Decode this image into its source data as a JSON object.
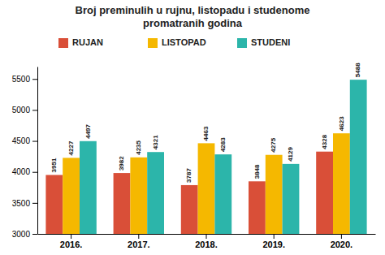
{
  "chart_data": {
    "type": "bar",
    "title": "Broj preminulih u rujnu, listopadu i studenome",
    "subtitle": "promatranih godina",
    "categories": [
      "2016.",
      "2017.",
      "2018.",
      "2019.",
      "2020."
    ],
    "series": [
      {
        "name": "RUJAN",
        "color": "#d94f38",
        "values": [
          3951,
          3982,
          3787,
          3848,
          4328
        ]
      },
      {
        "name": "LISTOPAD",
        "color": "#f5b800",
        "values": [
          4227,
          4235,
          4463,
          4275,
          4623
        ]
      },
      {
        "name": "STUDENI",
        "color": "#2cb5aa",
        "values": [
          4497,
          4321,
          4283,
          4129,
          5488
        ]
      }
    ],
    "ylim": [
      3000,
      5700
    ],
    "yticks": [
      3000,
      3500,
      4000,
      4500,
      5000,
      5500
    ],
    "data_labels": true,
    "legend": "top",
    "grid": false
  }
}
